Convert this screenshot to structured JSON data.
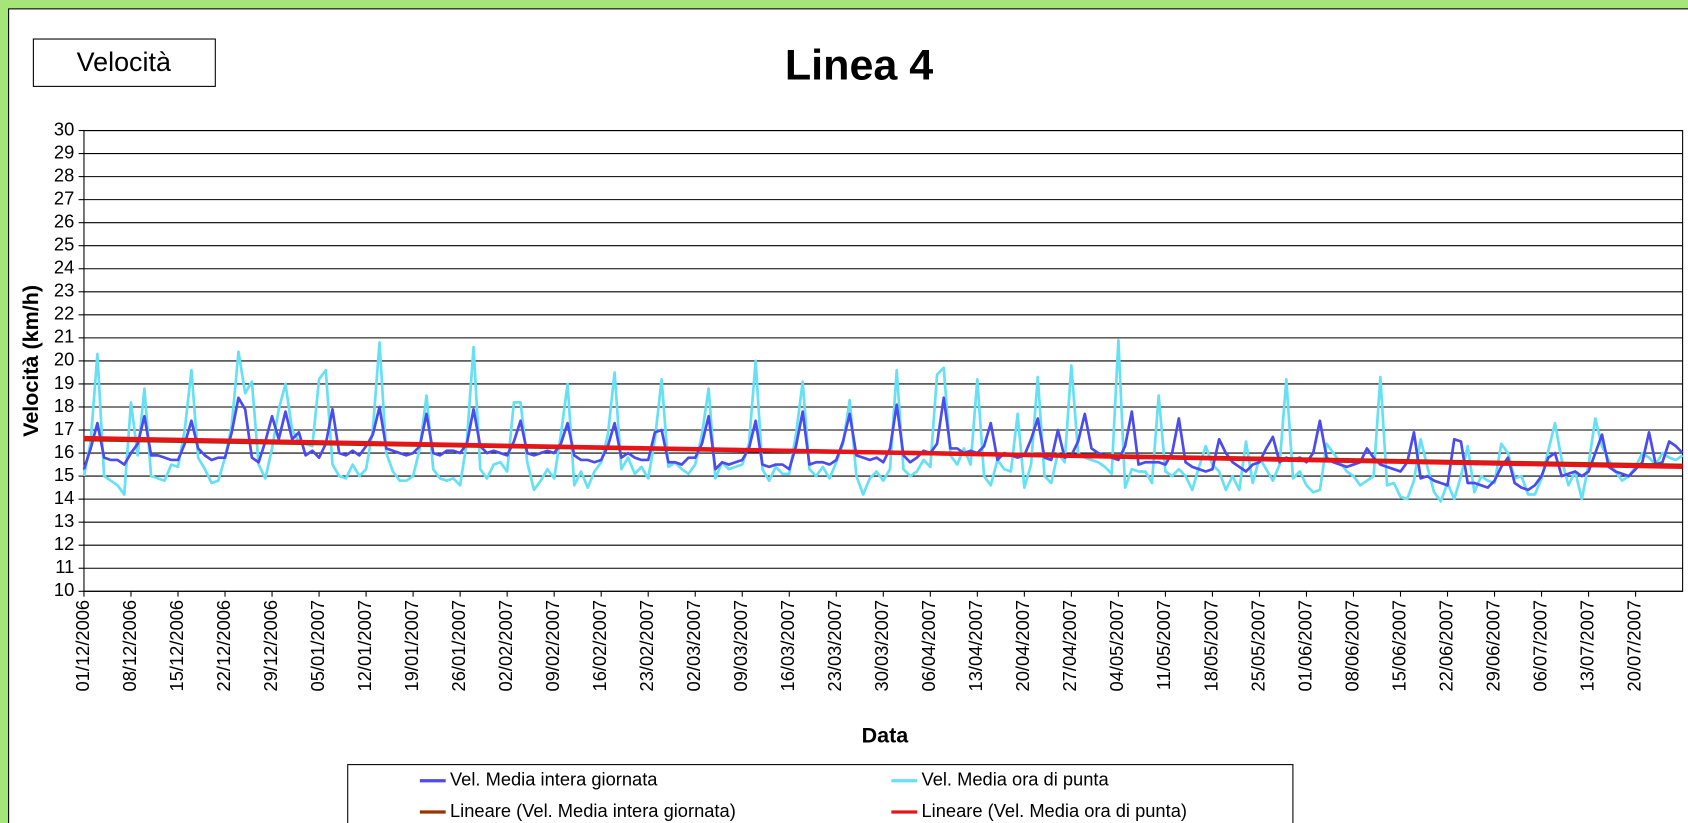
{
  "chart_data": {
    "type": "line",
    "title": "Linea 4",
    "badge": "Velocità",
    "y_label": "Velocità (km/h)",
    "x_label": "Data",
    "ylim": [
      10,
      30
    ],
    "yticks": [
      10,
      11,
      12,
      13,
      14,
      15,
      16,
      17,
      18,
      19,
      20,
      21,
      22,
      23,
      24,
      25,
      26,
      27,
      28,
      29,
      30
    ],
    "grid": true,
    "categories": [
      "01/12/2006",
      null,
      null,
      null,
      null,
      null,
      null,
      "08/12/2006",
      null,
      null,
      null,
      null,
      null,
      null,
      "15/12/2006",
      null,
      null,
      null,
      null,
      null,
      null,
      "22/12/2006",
      null,
      null,
      null,
      null,
      null,
      null,
      "29/12/2006",
      null,
      null,
      null,
      null,
      null,
      null,
      "05/01/2007",
      null,
      null,
      null,
      null,
      null,
      null,
      "12/01/2007",
      null,
      null,
      null,
      null,
      null,
      null,
      "19/01/2007",
      null,
      null,
      null,
      null,
      null,
      null,
      "26/01/2007",
      null,
      null,
      null,
      null,
      null,
      null,
      "02/02/2007",
      null,
      null,
      null,
      null,
      null,
      null,
      "09/02/2007",
      null,
      null,
      null,
      null,
      null,
      null,
      "16/02/2007",
      null,
      null,
      null,
      null,
      null,
      null,
      "23/02/2007",
      null,
      null,
      null,
      null,
      null,
      null,
      "02/03/2007",
      null,
      null,
      null,
      null,
      null,
      null,
      "09/03/2007",
      null,
      null,
      null,
      null,
      null,
      null,
      "16/03/2007",
      null,
      null,
      null,
      null,
      null,
      null,
      "23/03/2007",
      null,
      null,
      null,
      null,
      null,
      null,
      "30/03/2007",
      null,
      null,
      null,
      null,
      null,
      null,
      "06/04/2007",
      null,
      null,
      null,
      null,
      null,
      null,
      "13/04/2007",
      null,
      null,
      null,
      null,
      null,
      null,
      "20/04/2007",
      null,
      null,
      null,
      null,
      null,
      null,
      "27/04/2007",
      null,
      null,
      null,
      null,
      null,
      null,
      "04/05/2007",
      null,
      null,
      null,
      null,
      null,
      null,
      "11/05/2007",
      null,
      null,
      null,
      null,
      null,
      null,
      "18/05/2007",
      null,
      null,
      null,
      null,
      null,
      null,
      "25/05/2007",
      null,
      null,
      null,
      null,
      null,
      null,
      "01/06/2007",
      null,
      null,
      null,
      null,
      null,
      null,
      "08/06/2007",
      null,
      null,
      null,
      null,
      null,
      null,
      "15/06/2007",
      null,
      null,
      null,
      null,
      null,
      null,
      "22/06/2007",
      null,
      null,
      null,
      null,
      null,
      null,
      "29/06/2007",
      null,
      null,
      null,
      null,
      null,
      null,
      "06/07/2007",
      null,
      null,
      null,
      null,
      null,
      null,
      "13/07/2007",
      null,
      null,
      null,
      null,
      null,
      null,
      "20/07/2007",
      null,
      null,
      null,
      null,
      null,
      null,
      null
    ],
    "series": [
      {
        "name": "Vel. Media intera giornata",
        "color": "#4b4bf0",
        "values": [
          15.3,
          16.2,
          17.3,
          15.8,
          15.7,
          15.7,
          15.5,
          16.0,
          16.4,
          17.6,
          15.9,
          15.9,
          15.8,
          15.7,
          15.7,
          16.4,
          17.4,
          16.2,
          15.9,
          15.7,
          15.8,
          15.8,
          16.9,
          18.4,
          17.9,
          15.8,
          15.6,
          16.5,
          17.6,
          16.6,
          17.8,
          16.6,
          16.9,
          15.9,
          16.1,
          15.8,
          16.4,
          17.9,
          16.0,
          15.9,
          16.1,
          15.9,
          16.3,
          16.8,
          18.0,
          16.2,
          16.1,
          16.0,
          15.9,
          16.0,
          16.3,
          17.7,
          16.0,
          15.9,
          16.1,
          16.1,
          16.0,
          16.4,
          17.9,
          16.3,
          16.0,
          16.1,
          16.0,
          15.9,
          16.5,
          17.4,
          16.0,
          15.9,
          16.0,
          16.1,
          16.0,
          16.4,
          17.3,
          15.9,
          15.7,
          15.7,
          15.6,
          15.7,
          16.3,
          17.3,
          15.8,
          16.0,
          15.8,
          15.7,
          15.7,
          16.9,
          17.0,
          15.6,
          15.6,
          15.5,
          15.8,
          15.8,
          16.4,
          17.6,
          15.3,
          15.6,
          15.5,
          15.6,
          15.7,
          16.2,
          17.4,
          15.5,
          15.4,
          15.5,
          15.5,
          15.3,
          16.3,
          17.8,
          15.5,
          15.6,
          15.6,
          15.5,
          15.7,
          16.5,
          17.7,
          15.9,
          15.8,
          15.7,
          15.8,
          15.6,
          16.2,
          18.1,
          15.9,
          15.6,
          15.8,
          16.1,
          16.0,
          16.4,
          18.4,
          16.2,
          16.2,
          16.0,
          16.1,
          16.0,
          16.3,
          17.3,
          15.7,
          16.0,
          15.9,
          15.8,
          15.9,
          16.6,
          17.5,
          15.8,
          15.7,
          17.0,
          15.8,
          15.9,
          16.5,
          17.7,
          16.2,
          16.0,
          15.9,
          15.8,
          15.7,
          16.3,
          17.8,
          15.5,
          15.6,
          15.6,
          15.6,
          15.5,
          16.0,
          17.5,
          15.6,
          15.4,
          15.3,
          15.2,
          15.3,
          16.6,
          16.0,
          15.6,
          15.4,
          15.2,
          15.5,
          15.6,
          16.2,
          16.7,
          15.6,
          15.8,
          15.7,
          15.8,
          15.6,
          16.0,
          17.4,
          15.8,
          15.6,
          15.5,
          15.4,
          15.5,
          15.6,
          16.2,
          15.8,
          15.5,
          15.4,
          15.3,
          15.2,
          15.6,
          16.9,
          14.9,
          15.0,
          14.8,
          14.7,
          14.6,
          16.6,
          16.5,
          14.7,
          14.7,
          14.6,
          14.5,
          14.8,
          15.4,
          15.8,
          14.7,
          14.5,
          14.4,
          14.6,
          15.0,
          15.8,
          16.0,
          15.0,
          15.1,
          15.2,
          15.0,
          15.2,
          16.0,
          16.8,
          15.4,
          15.2,
          15.1,
          15.0,
          15.3,
          15.6,
          16.9,
          15.5,
          15.6,
          16.5,
          16.3,
          16.0
        ]
      },
      {
        "name": "Vel. Media ora di punta",
        "color": "#66e0f5",
        "values": [
          15.0,
          16.5,
          20.3,
          15.0,
          14.8,
          14.6,
          14.2,
          18.2,
          15.9,
          18.8,
          15.0,
          14.9,
          14.8,
          15.5,
          15.4,
          17.0,
          19.6,
          15.8,
          15.3,
          14.7,
          14.8,
          15.8,
          17.2,
          20.4,
          18.6,
          19.1,
          15.5,
          14.9,
          16.2,
          17.9,
          19.0,
          17.0,
          16.5,
          16.4,
          16.3,
          19.2,
          19.6,
          15.5,
          15.0,
          14.9,
          15.5,
          15.0,
          15.3,
          17.0,
          20.8,
          16.0,
          15.2,
          14.8,
          14.8,
          15.0,
          16.2,
          18.5,
          15.3,
          14.9,
          14.8,
          14.9,
          14.6,
          16.5,
          20.6,
          15.3,
          14.9,
          15.5,
          15.6,
          15.2,
          18.2,
          18.2,
          15.6,
          14.4,
          14.8,
          15.3,
          14.9,
          16.8,
          19.0,
          14.6,
          15.2,
          14.5,
          15.2,
          15.6,
          16.8,
          19.5,
          15.3,
          15.8,
          15.1,
          15.4,
          14.9,
          16.6,
          19.2,
          15.4,
          15.6,
          15.3,
          15.1,
          15.5,
          16.8,
          18.8,
          14.9,
          15.6,
          15.3,
          15.4,
          15.5,
          16.4,
          20.0,
          15.3,
          14.8,
          15.4,
          15.1,
          15.1,
          16.8,
          19.1,
          15.3,
          15.0,
          15.4,
          14.9,
          15.6,
          16.4,
          18.3,
          15.0,
          14.2,
          14.9,
          15.2,
          14.8,
          15.3,
          19.6,
          15.3,
          15.0,
          15.2,
          15.7,
          15.4,
          19.4,
          19.7,
          15.9,
          15.5,
          16.2,
          15.5,
          19.2,
          15.0,
          14.6,
          15.7,
          15.3,
          15.2,
          17.7,
          14.5,
          15.5,
          19.3,
          15.0,
          14.7,
          16.0,
          15.6,
          19.8,
          16.0,
          15.8,
          15.7,
          15.6,
          15.4,
          15.1,
          20.9,
          14.5,
          15.3,
          15.2,
          15.2,
          14.7,
          18.5,
          15.2,
          15.0,
          15.3,
          15.0,
          14.4,
          15.4,
          16.3,
          15.5,
          15.2,
          14.4,
          15.0,
          14.4,
          16.5,
          14.7,
          15.8,
          15.3,
          14.8,
          15.5,
          19.2,
          14.9,
          15.2,
          14.6,
          14.3,
          14.4,
          16.4,
          16.0,
          15.6,
          15.2,
          15.0,
          14.6,
          14.8,
          15.0,
          19.3,
          14.6,
          14.7,
          14.1,
          14.0,
          14.8,
          16.6,
          15.4,
          14.3,
          13.9,
          14.7,
          14.0,
          15.0,
          16.3,
          14.3,
          15.0,
          14.8,
          14.7,
          16.4,
          16.0,
          14.9,
          15.0,
          14.2,
          14.2,
          14.9,
          16.1,
          17.3,
          15.7,
          14.6,
          15.2,
          14.0,
          15.5,
          17.5,
          16.3,
          15.7,
          15.2,
          14.8,
          15.0,
          15.4,
          16.0,
          15.8,
          15.5,
          16.0,
          15.8,
          15.7,
          15.9
        ]
      }
    ],
    "trendlines": [
      {
        "name": "Lineare (Vel. Media intera giornata)",
        "color": "#993300",
        "start": 16.6,
        "end": 15.45
      },
      {
        "name": "Lineare (Vel. Media ora di punta)",
        "color": "#e8141a",
        "start": 16.65,
        "end": 15.4
      }
    ]
  }
}
